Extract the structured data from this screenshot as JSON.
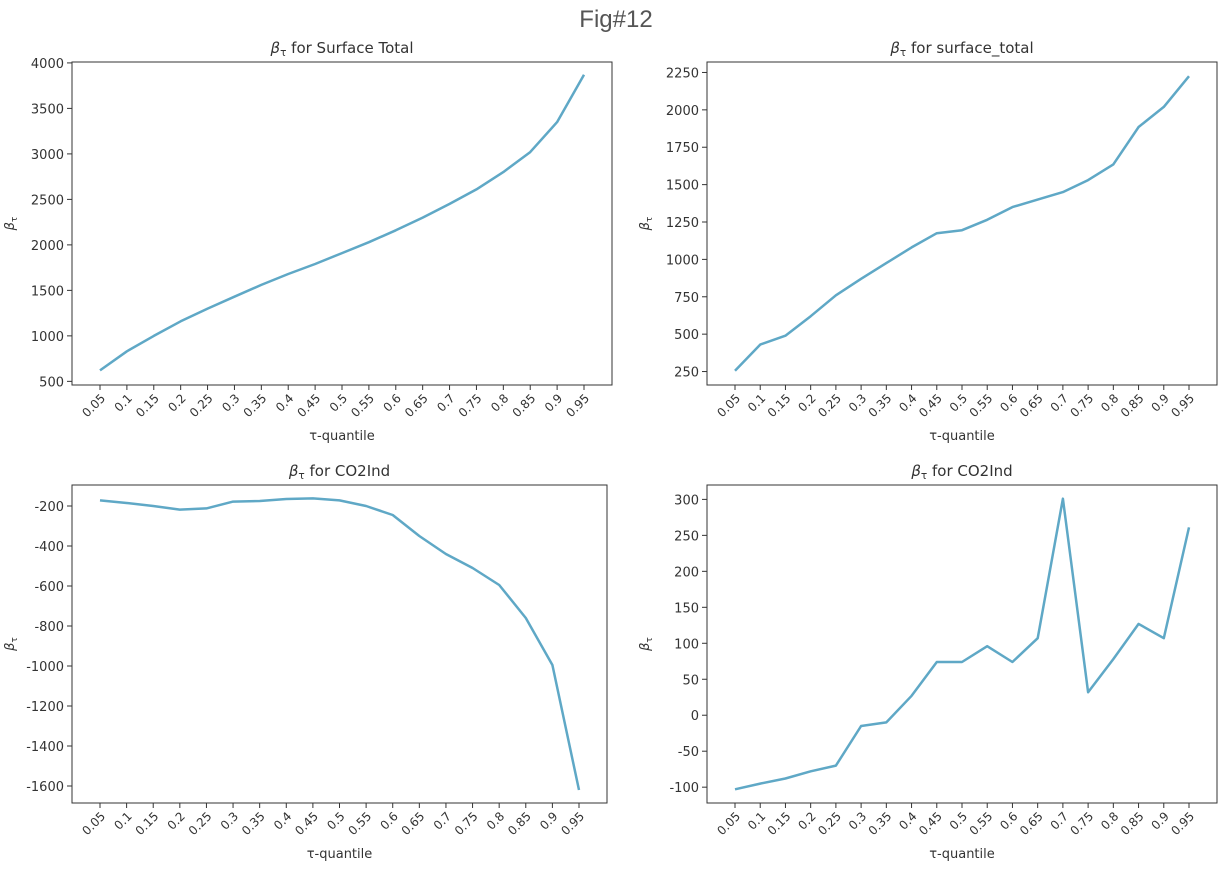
{
  "figure_title": "Fig#12",
  "chart_data": [
    {
      "type": "line",
      "title": "βτ for Surface Total",
      "xlabel": "τ-quantile",
      "ylabel": "βτ",
      "categories": [
        "0.05",
        "0.1",
        "0.15",
        "0.2",
        "0.25",
        "0.3",
        "0.35",
        "0.4",
        "0.45",
        "0.5",
        "0.55",
        "0.6",
        "0.65",
        "0.7",
        "0.75",
        "0.8",
        "0.85",
        "0.9",
        "0.95"
      ],
      "values": [
        620,
        830,
        1000,
        1160,
        1300,
        1430,
        1560,
        1680,
        1790,
        1910,
        2030,
        2160,
        2300,
        2450,
        2610,
        2800,
        3020,
        3350,
        3870
      ],
      "ylim": [
        460,
        4010
      ],
      "yticks": [
        500,
        1000,
        1500,
        2000,
        2500,
        3000,
        3500,
        4000
      ],
      "color": "#5fa8c6"
    },
    {
      "type": "line",
      "title": "βτ for surface_total",
      "xlabel": "τ-quantile",
      "ylabel": "βτ",
      "categories": [
        "0.05",
        "0.1",
        "0.15",
        "0.2",
        "0.25",
        "0.3",
        "0.35",
        "0.4",
        "0.45",
        "0.5",
        "0.55",
        "0.6",
        "0.65",
        "0.7",
        "0.75",
        "0.8",
        "0.85",
        "0.9",
        "0.95"
      ],
      "values": [
        255,
        430,
        490,
        620,
        760,
        870,
        975,
        1080,
        1175,
        1195,
        1265,
        1350,
        1400,
        1450,
        1530,
        1635,
        1885,
        2020,
        2225
      ],
      "ylim": [
        160,
        2320
      ],
      "yticks": [
        250,
        500,
        750,
        1000,
        1250,
        1500,
        1750,
        2000,
        2250
      ],
      "color": "#5fa8c6"
    },
    {
      "type": "line",
      "title": "βτ for CO2Ind",
      "xlabel": "τ-quantile",
      "ylabel": "βτ",
      "categories": [
        "0.05",
        "0.1",
        "0.15",
        "0.2",
        "0.25",
        "0.3",
        "0.35",
        "0.4",
        "0.45",
        "0.5",
        "0.55",
        "0.6",
        "0.65",
        "0.7",
        "0.75",
        "0.8",
        "0.85",
        "0.9",
        "0.95"
      ],
      "values": [
        -172,
        -185,
        -200,
        -218,
        -212,
        -178,
        -175,
        -165,
        -162,
        -172,
        -200,
        -245,
        -350,
        -440,
        -510,
        -595,
        -760,
        -995,
        -1620
      ],
      "ylim": [
        -1685,
        -95
      ],
      "yticks": [
        -200,
        -400,
        -600,
        -800,
        -1000,
        -1200,
        -1400,
        -1600
      ],
      "color": "#5fa8c6"
    },
    {
      "type": "line",
      "title": "βτ for CO2Ind",
      "xlabel": "τ-quantile",
      "ylabel": "βτ",
      "categories": [
        "0.05",
        "0.1",
        "0.15",
        "0.2",
        "0.25",
        "0.3",
        "0.35",
        "0.4",
        "0.45",
        "0.5",
        "0.55",
        "0.6",
        "0.65",
        "0.7",
        "0.75",
        "0.8",
        "0.85",
        "0.9",
        "0.95"
      ],
      "values": [
        -103,
        -95,
        -88,
        -78,
        -70,
        -15,
        -10,
        27,
        74,
        74,
        96,
        74,
        107,
        301,
        32,
        78,
        127,
        107,
        261
      ],
      "ylim": [
        -122,
        320
      ],
      "yticks": [
        -100,
        -50,
        0,
        50,
        100,
        150,
        200,
        250,
        300
      ],
      "color": "#5fa8c6"
    }
  ]
}
